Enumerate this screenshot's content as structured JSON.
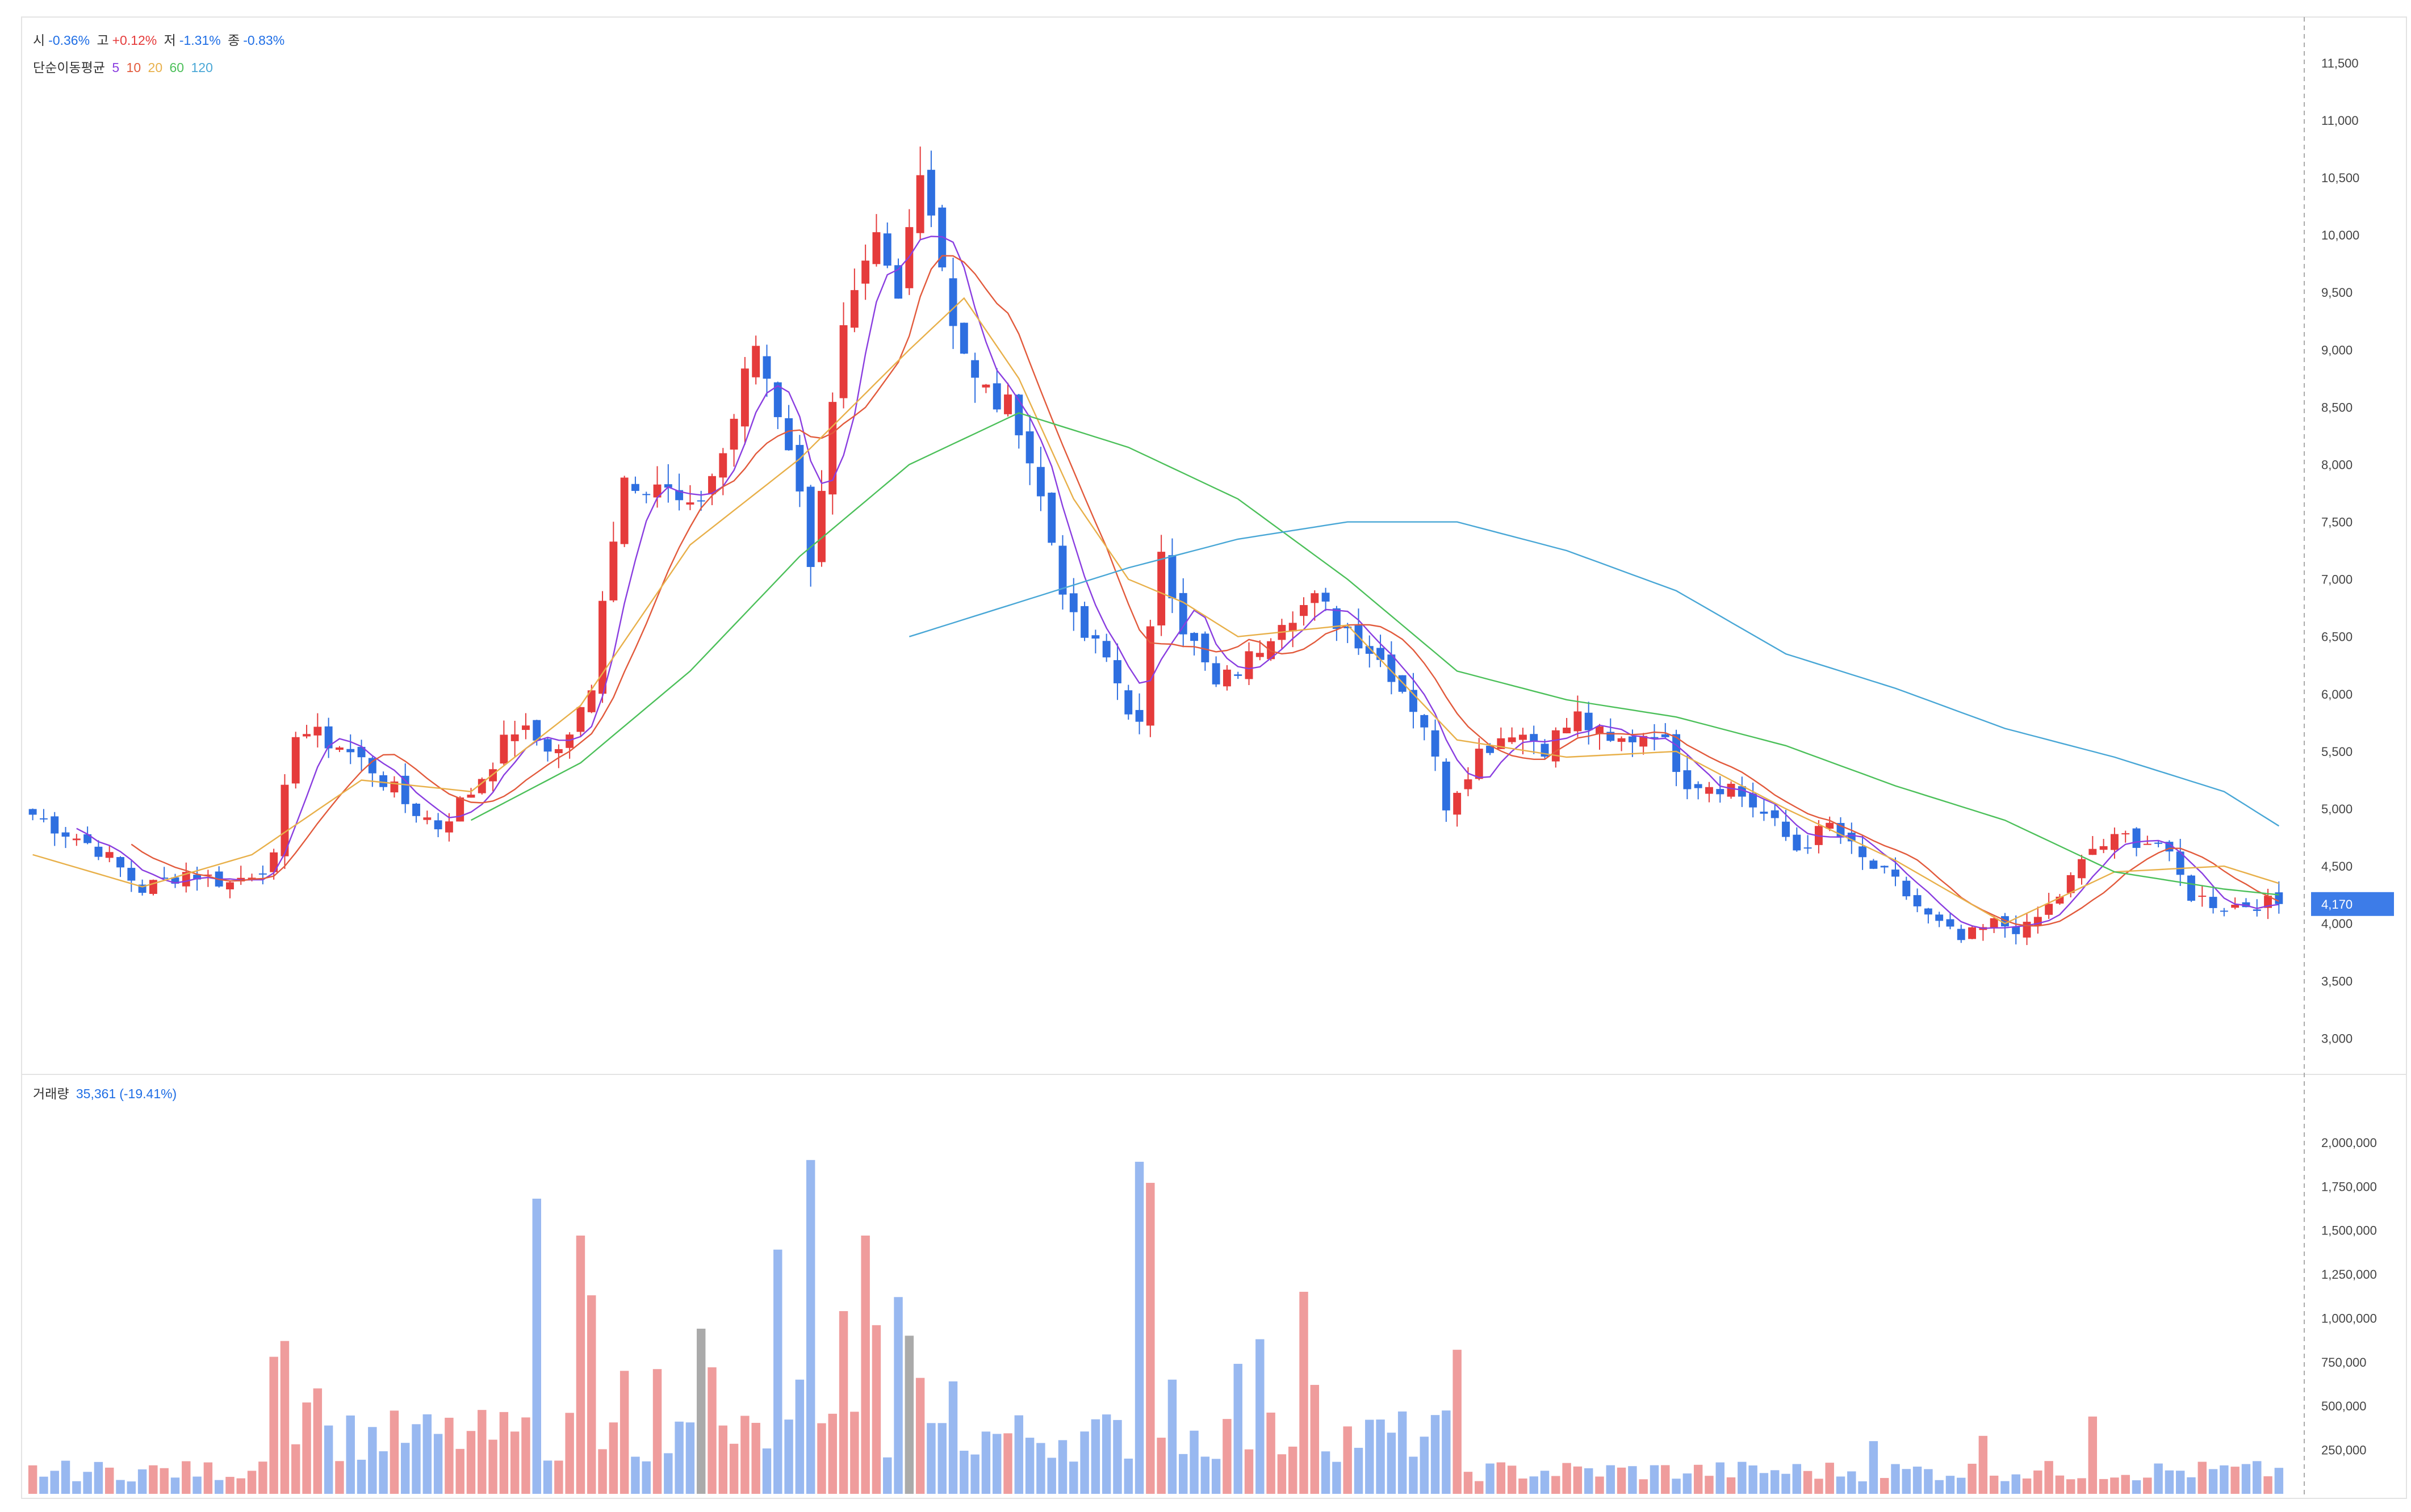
{
  "colors": {
    "up": "#e53b3b",
    "down": "#2e6fe0",
    "up_volume": "#ef9c9c",
    "down_volume": "#98b8f0",
    "neutral_volume": "#aaaaaa",
    "ma5": "#8a3ee0",
    "ma10": "#e25a3c",
    "ma20": "#e8b04a",
    "ma60": "#4cc05a",
    "ma120": "#49a7d6",
    "price_tag": "#3d7ce8"
  },
  "legend": {
    "open_label": "시",
    "open_value": "-0.36%",
    "high_label": "고",
    "high_value": "+0.12%",
    "low_label": "저",
    "low_value": "-1.31%",
    "close_label": "종",
    "close_value": "-0.83%",
    "ma_title": "단순이동평균",
    "ma_periods": [
      "5",
      "10",
      "20",
      "60",
      "120"
    ]
  },
  "volume_legend": {
    "title": "거래량",
    "value": "35,361",
    "change": "(-19.41%)"
  },
  "current_price": "4,170",
  "chart_data": [
    {
      "type": "candlestick",
      "title": "",
      "y_ticks": [
        "11,500",
        "11,000",
        "10,500",
        "10,000",
        "9,500",
        "9,000",
        "8,500",
        "8,000",
        "7,500",
        "7,000",
        "6,500",
        "6,000",
        "5,500",
        "5,000",
        "4,500",
        "4,000",
        "3,500",
        "3,000"
      ],
      "ylim": [
        2700,
        11900
      ],
      "moving_averages": [
        "5",
        "10",
        "20",
        "60",
        "120"
      ],
      "anchor_closes": [
        [
          0,
          4950
        ],
        [
          6,
          4650
        ],
        [
          10,
          4300
        ],
        [
          14,
          4450
        ],
        [
          18,
          4350
        ],
        [
          22,
          4550
        ],
        [
          24,
          5700
        ],
        [
          28,
          5550
        ],
        [
          31,
          5350
        ],
        [
          34,
          5050
        ],
        [
          37,
          4850
        ],
        [
          40,
          5150
        ],
        [
          44,
          5700
        ],
        [
          48,
          5500
        ],
        [
          51,
          6000
        ],
        [
          52,
          6900
        ],
        [
          54,
          7900
        ],
        [
          57,
          7850
        ],
        [
          60,
          7550
        ],
        [
          63,
          8100
        ],
        [
          66,
          9050
        ],
        [
          69,
          8200
        ],
        [
          71,
          7200
        ],
        [
          74,
          9100
        ],
        [
          77,
          9900
        ],
        [
          79,
          9400
        ],
        [
          81,
          10700
        ],
        [
          84,
          9300
        ],
        [
          86,
          8700
        ],
        [
          90,
          8400
        ],
        [
          92,
          7700
        ],
        [
          95,
          6600
        ],
        [
          98,
          6300
        ],
        [
          101,
          5700
        ],
        [
          103,
          7300
        ],
        [
          105,
          6600
        ],
        [
          108,
          6050
        ],
        [
          111,
          6300
        ],
        [
          114,
          6700
        ],
        [
          117,
          6800
        ],
        [
          121,
          6500
        ],
        [
          124,
          6200
        ],
        [
          127,
          5750
        ],
        [
          129,
          5050
        ],
        [
          132,
          5500
        ],
        [
          135,
          5700
        ],
        [
          138,
          5550
        ],
        [
          141,
          5800
        ],
        [
          144,
          5550
        ],
        [
          148,
          5700
        ],
        [
          151,
          5250
        ],
        [
          155,
          5200
        ],
        [
          158,
          4950
        ],
        [
          161,
          4650
        ],
        [
          164,
          4850
        ],
        [
          167,
          4550
        ],
        [
          170,
          4350
        ],
        [
          173,
          4050
        ],
        [
          176,
          3850
        ],
        [
          179,
          4000
        ],
        [
          182,
          3950
        ],
        [
          185,
          4250
        ],
        [
          188,
          4650
        ],
        [
          191,
          4750
        ],
        [
          194,
          4700
        ],
        [
          197,
          4250
        ],
        [
          200,
          4150
        ],
        [
          203,
          4180
        ],
        [
          205,
          4170
        ]
      ],
      "moving_average_curves": {
        "20": [
          [
            0,
            4600
          ],
          [
            10,
            4320
          ],
          [
            20,
            4600
          ],
          [
            30,
            5250
          ],
          [
            40,
            5150
          ],
          [
            50,
            5900
          ],
          [
            60,
            7300
          ],
          [
            70,
            8050
          ],
          [
            80,
            9000
          ],
          [
            85,
            9450
          ],
          [
            90,
            8750
          ],
          [
            95,
            7700
          ],
          [
            100,
            7000
          ],
          [
            105,
            6800
          ],
          [
            110,
            6500
          ],
          [
            120,
            6600
          ],
          [
            130,
            5600
          ],
          [
            140,
            5450
          ],
          [
            150,
            5500
          ],
          [
            160,
            5000
          ],
          [
            170,
            4550
          ],
          [
            180,
            4000
          ],
          [
            190,
            4450
          ],
          [
            200,
            4500
          ],
          [
            205,
            4350
          ]
        ],
        "60": [
          [
            40,
            4900
          ],
          [
            50,
            5400
          ],
          [
            60,
            6200
          ],
          [
            70,
            7200
          ],
          [
            80,
            8000
          ],
          [
            90,
            8450
          ],
          [
            100,
            8150
          ],
          [
            110,
            7700
          ],
          [
            120,
            7000
          ],
          [
            130,
            6200
          ],
          [
            140,
            5950
          ],
          [
            150,
            5800
          ],
          [
            160,
            5550
          ],
          [
            170,
            5200
          ],
          [
            180,
            4900
          ],
          [
            190,
            4450
          ],
          [
            200,
            4300
          ],
          [
            205,
            4250
          ]
        ],
        "120": [
          [
            80,
            6500
          ],
          [
            100,
            7100
          ],
          [
            110,
            7350
          ],
          [
            120,
            7500
          ],
          [
            130,
            7500
          ],
          [
            140,
            7250
          ],
          [
            150,
            6900
          ],
          [
            160,
            6350
          ],
          [
            170,
            6050
          ],
          [
            180,
            5700
          ],
          [
            190,
            5450
          ],
          [
            200,
            5150
          ],
          [
            205,
            4850
          ]
        ]
      }
    },
    {
      "type": "bar",
      "title": "",
      "y_ticks": [
        "2,000,000",
        "1,750,000",
        "1,500,000",
        "1,250,000",
        "1,000,000",
        "750,000",
        "500,000",
        "250,000"
      ],
      "ylim": [
        0,
        2300000
      ],
      "spikes": [
        [
          22,
          780000
        ],
        [
          23,
          870000
        ],
        [
          25,
          520000
        ],
        [
          26,
          600000
        ],
        [
          46,
          1680000
        ],
        [
          50,
          1470000
        ],
        [
          51,
          1130000
        ],
        [
          54,
          700000
        ],
        [
          57,
          710000
        ],
        [
          61,
          940000
        ],
        [
          62,
          720000
        ],
        [
          68,
          1390000
        ],
        [
          70,
          650000
        ],
        [
          71,
          1900000
        ],
        [
          74,
          1040000
        ],
        [
          76,
          1470000
        ],
        [
          77,
          960000
        ],
        [
          79,
          1120000
        ],
        [
          80,
          900000
        ],
        [
          81,
          660000
        ],
        [
          84,
          640000
        ],
        [
          101,
          1890000
        ],
        [
          102,
          1770000
        ],
        [
          104,
          650000
        ],
        [
          110,
          740000
        ],
        [
          112,
          880000
        ],
        [
          116,
          1150000
        ],
        [
          117,
          620000
        ],
        [
          130,
          820000
        ],
        [
          168,
          300000
        ],
        [
          178,
          330000
        ],
        [
          188,
          440000
        ]
      ]
    }
  ]
}
